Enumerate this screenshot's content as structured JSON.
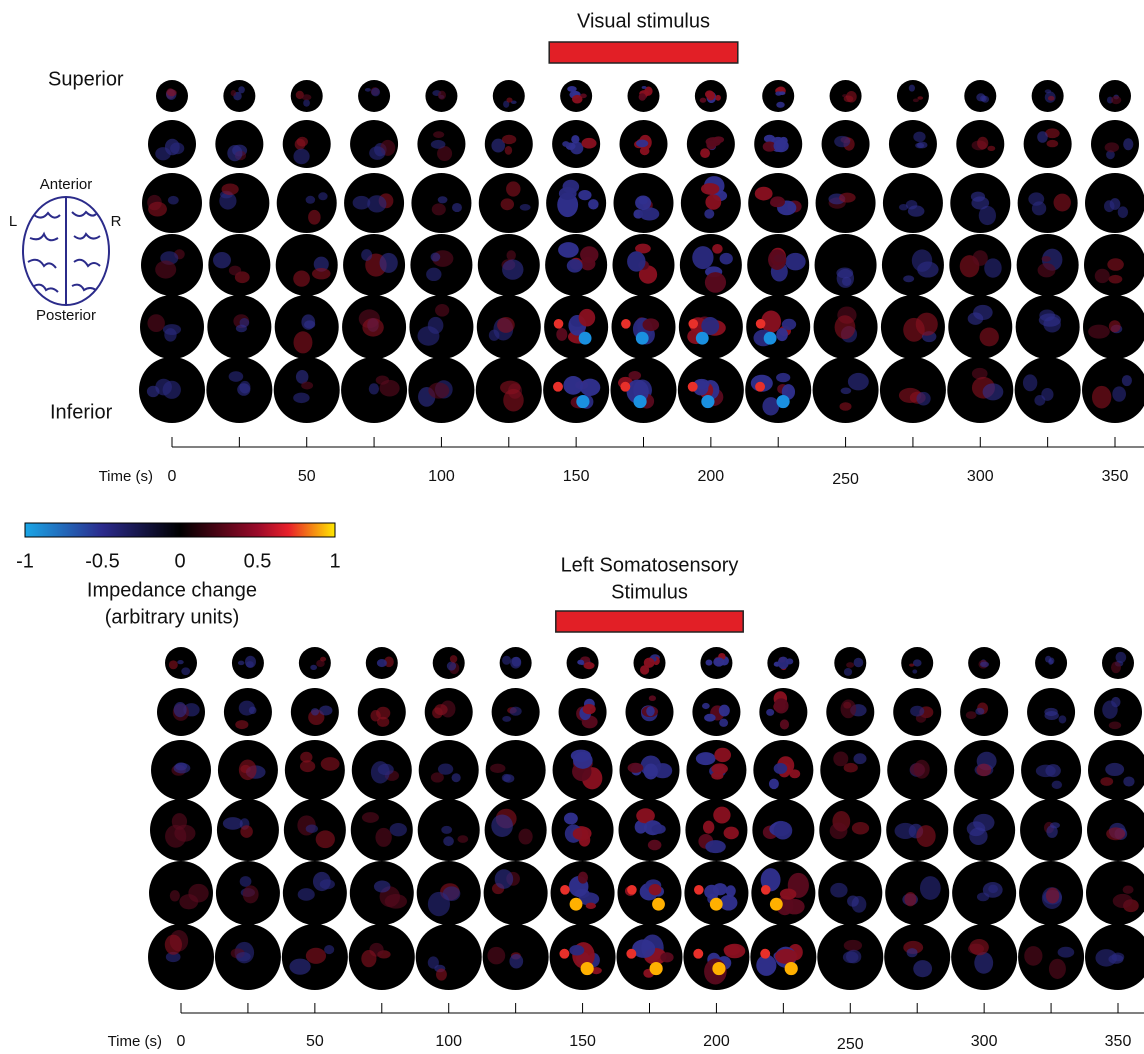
{
  "colorbar": {
    "label_lines": [
      "Impedance change",
      "(arbitrary units)"
    ],
    "lim": [
      -1,
      1
    ],
    "ticks": [
      -1,
      -0.5,
      0,
      0.5,
      1
    ]
  },
  "orientation": {
    "anterior": "Anterior",
    "posterior": "Posterior",
    "left": "L",
    "right": "R"
  },
  "row_labels": {
    "top": "Superior",
    "bottom": "Inferior"
  },
  "panels": [
    {
      "title_lines": [
        "Visual stimulus"
      ],
      "stimulus": [
        140,
        210
      ],
      "xlabel": "Time (s)",
      "xlim": [
        0,
        350
      ],
      "xticks": [
        0,
        50,
        100,
        150,
        200,
        250,
        300,
        350
      ],
      "minor_xticks": [
        25,
        75,
        125,
        175,
        225,
        275,
        325
      ],
      "frame_times": [
        0,
        25,
        50,
        75,
        100,
        125,
        150,
        175,
        200,
        225,
        250,
        275,
        300,
        325,
        350
      ]
    },
    {
      "title_lines": [
        "Left Somatosensory",
        "Stimulus"
      ],
      "stimulus": [
        140,
        210
      ],
      "xlabel": "Time (s)",
      "xlim": [
        0,
        350
      ],
      "xticks": [
        0,
        50,
        100,
        150,
        200,
        250,
        300,
        350
      ],
      "minor_xticks": [
        25,
        75,
        125,
        175,
        225,
        275,
        325
      ],
      "frame_times": [
        0,
        25,
        50,
        75,
        100,
        125,
        150,
        175,
        200,
        225,
        250,
        275,
        300,
        325,
        350
      ]
    }
  ]
}
